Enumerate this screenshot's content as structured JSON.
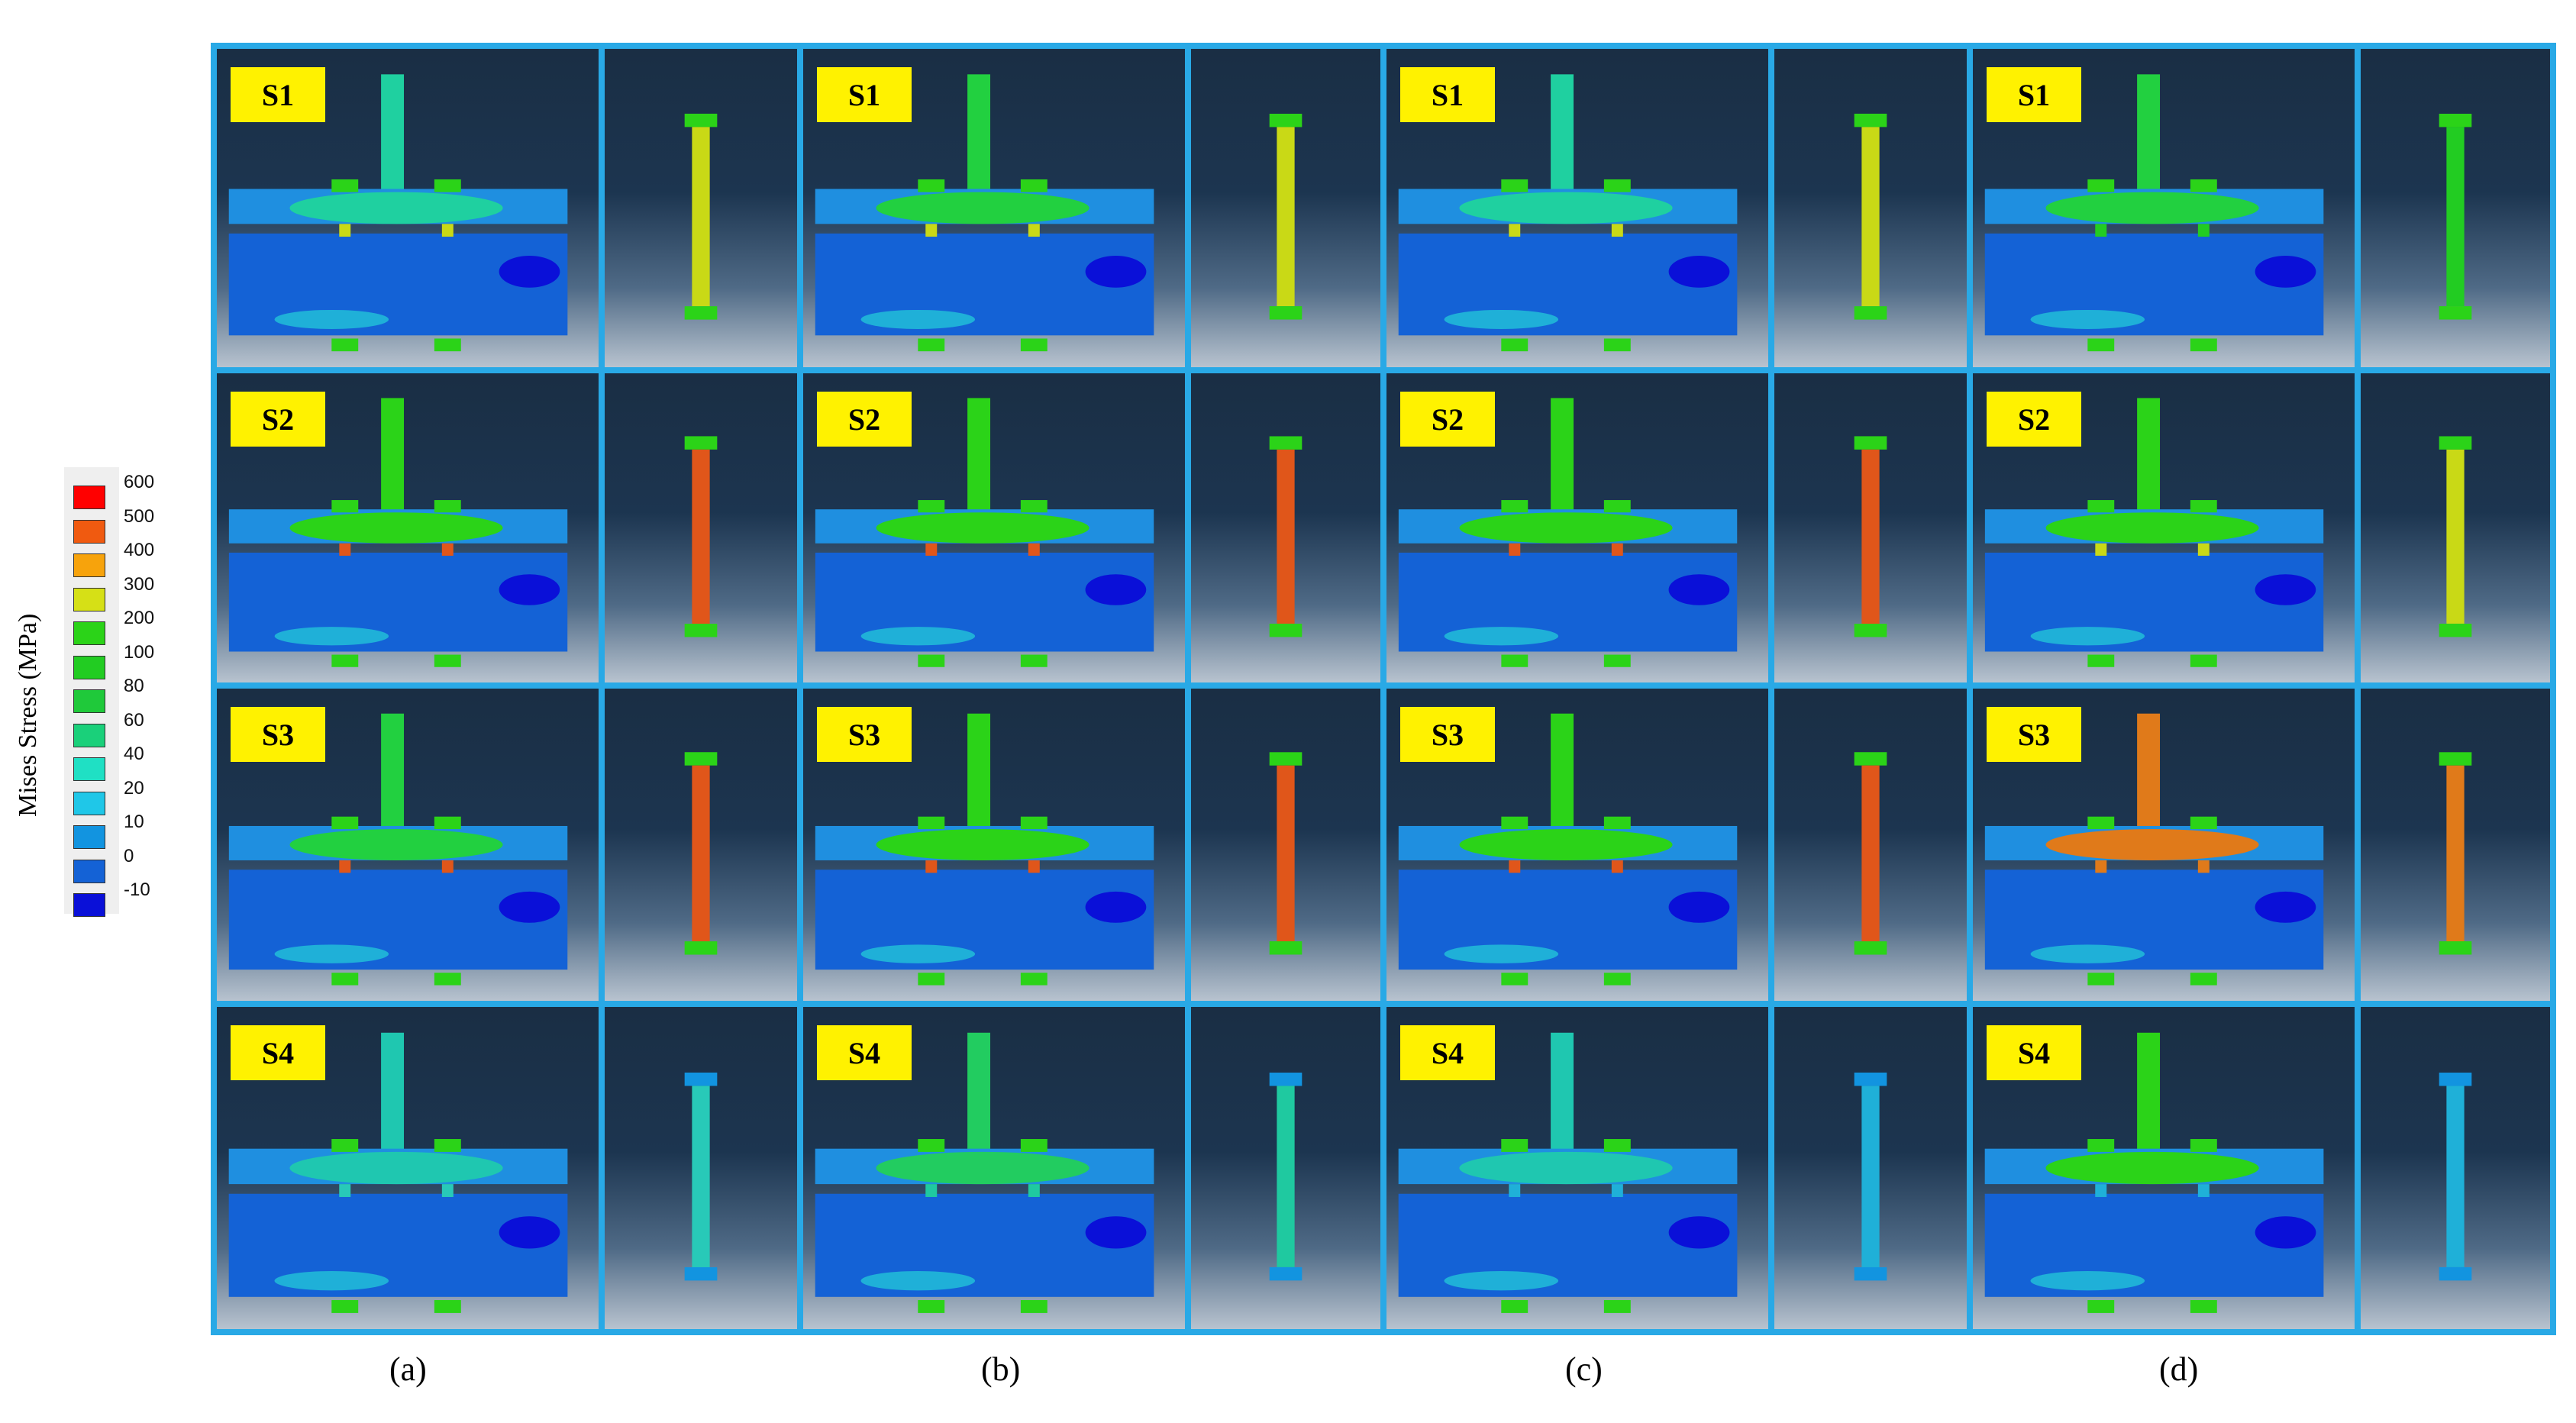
{
  "legend": {
    "title": "Mises Stress (MPa)",
    "entries": [
      {
        "label": "600",
        "color": "#ff0000"
      },
      {
        "label": "500",
        "color": "#f05a10"
      },
      {
        "label": "400",
        "color": "#f7a30c"
      },
      {
        "label": "300",
        "color": "#d6e016"
      },
      {
        "label": "200",
        "color": "#2bd318"
      },
      {
        "label": "100",
        "color": "#22cc22"
      },
      {
        "label": "80",
        "color": "#1fc93a"
      },
      {
        "label": "60",
        "color": "#1ad07a"
      },
      {
        "label": "40",
        "color": "#1fe0c4"
      },
      {
        "label": "20",
        "color": "#1fc7e8"
      },
      {
        "label": "10",
        "color": "#1294e0"
      },
      {
        "label": "0",
        "color": "#1462d6"
      },
      {
        "label": "-10",
        "color": "#0a10d8"
      }
    ]
  },
  "stages": [
    "S1",
    "S2",
    "S3",
    "S4"
  ],
  "columns": [
    {
      "caption": "(a)",
      "bolt_colors": [
        "#c9d916",
        "#e0561a",
        "#e0561a",
        "#28c9b8"
      ],
      "plate_top": [
        "#1fd0a0",
        "#2bd318",
        "#22d040",
        "#1fc7b0"
      ]
    },
    {
      "caption": "(b)",
      "bolt_colors": [
        "#c9d916",
        "#e0561a",
        "#e0561a",
        "#1fc9a0"
      ],
      "plate_top": [
        "#22d040",
        "#2bd318",
        "#2bd318",
        "#22cc60"
      ]
    },
    {
      "caption": "(c)",
      "bolt_colors": [
        "#c9d916",
        "#e0561a",
        "#e0561a",
        "#1fb0d8"
      ],
      "plate_top": [
        "#1fd0a0",
        "#2bd318",
        "#2bd318",
        "#1fc7b0"
      ]
    },
    {
      "caption": "(d)",
      "bolt_colors": [
        "#22cc22",
        "#c9d916",
        "#e07a1a",
        "#1fb0d8"
      ],
      "plate_top": [
        "#22d040",
        "#2bd318",
        "#e07a1a",
        "#2bd318"
      ]
    }
  ]
}
